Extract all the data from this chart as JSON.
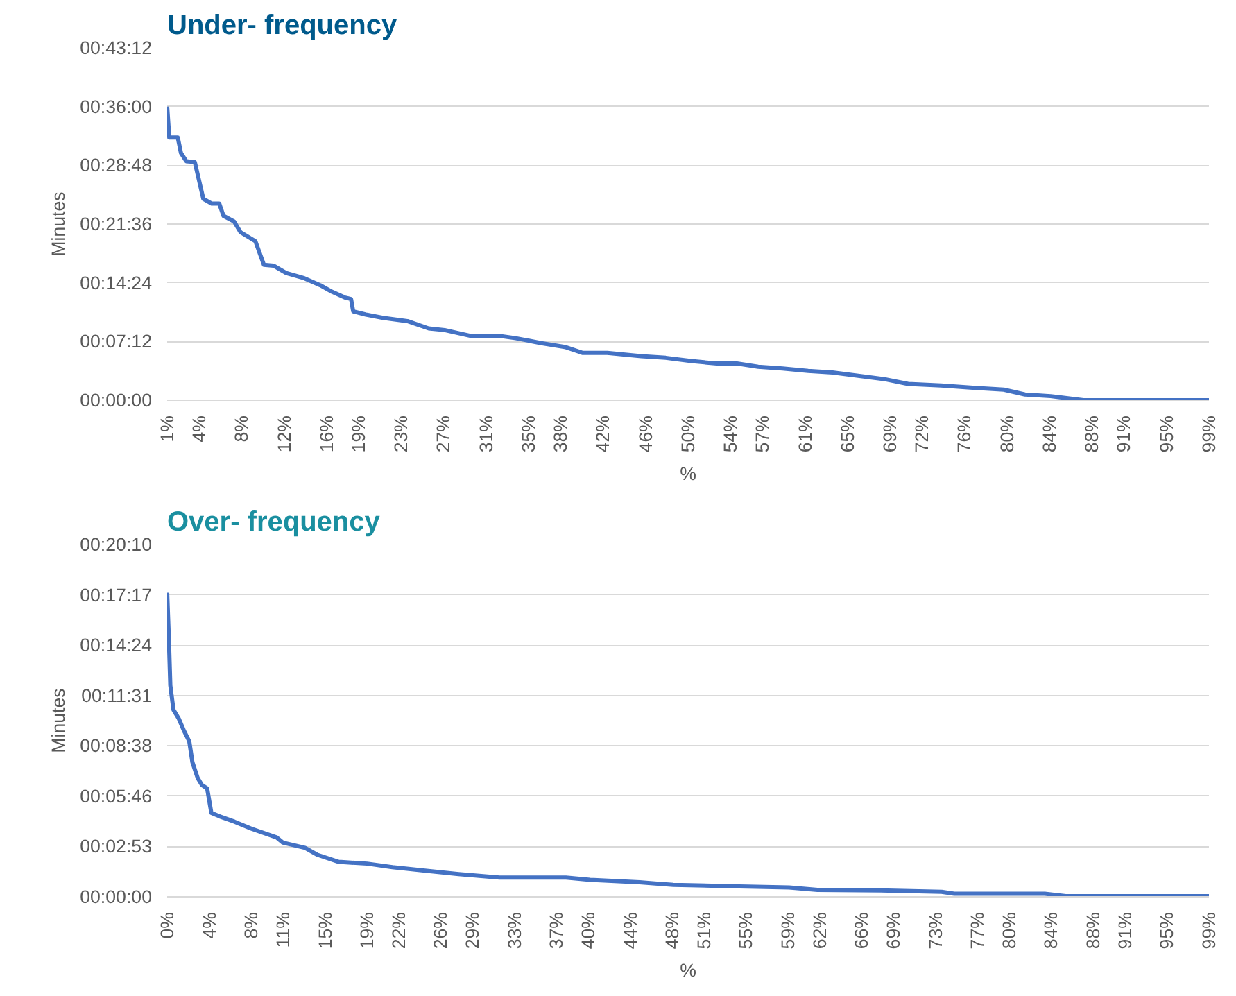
{
  "chart_data": [
    {
      "type": "line",
      "title": "Under-\nfrequency",
      "xlabel": "%",
      "ylabel": "Minutes",
      "grid": "y",
      "line_style": "solid",
      "xlim": [
        1,
        99
      ],
      "xticks": [
        {
          "value": 1,
          "label": "1%"
        },
        {
          "value": 4,
          "label": "4%"
        },
        {
          "value": 8,
          "label": "8%"
        },
        {
          "value": 12,
          "label": "12%"
        },
        {
          "value": 16,
          "label": "16%"
        },
        {
          "value": 19,
          "label": "19%"
        },
        {
          "value": 23,
          "label": "23%"
        },
        {
          "value": 27,
          "label": "27%"
        },
        {
          "value": 31,
          "label": "31%"
        },
        {
          "value": 35,
          "label": "35%"
        },
        {
          "value": 38,
          "label": "38%"
        },
        {
          "value": 42,
          "label": "42%"
        },
        {
          "value": 46,
          "label": "46%"
        },
        {
          "value": 50,
          "label": "50%"
        },
        {
          "value": 54,
          "label": "54%"
        },
        {
          "value": 57,
          "label": "57%"
        },
        {
          "value": 61,
          "label": "61%"
        },
        {
          "value": 65,
          "label": "65%"
        },
        {
          "value": 69,
          "label": "69%"
        },
        {
          "value": 72,
          "label": "72%"
        },
        {
          "value": 76,
          "label": "76%"
        },
        {
          "value": 80,
          "label": "80%"
        },
        {
          "value": 84,
          "label": "84%"
        },
        {
          "value": 88,
          "label": "88%"
        },
        {
          "value": 91,
          "label": "91%"
        },
        {
          "value": 95,
          "label": "95%"
        },
        {
          "value": 99,
          "label": "99%"
        }
      ],
      "ylim": [
        0,
        43.2
      ],
      "yticks": [
        {
          "value": 0,
          "label": "00:00:00"
        },
        {
          "value": 7.2,
          "label": "00:07:12"
        },
        {
          "value": 14.4,
          "label": "00:14:24"
        },
        {
          "value": 21.6,
          "label": "00:21:36"
        },
        {
          "value": 28.8,
          "label": "00:28:48"
        },
        {
          "value": 36,
          "label": "00:36:00"
        },
        {
          "value": 43.2,
          "label": "00:43:12"
        }
      ],
      "series": [
        {
          "color": "#4472c4",
          "x": [
            1,
            1.2,
            2,
            2.3,
            2.8,
            3.6,
            4.4,
            5.2,
            5.9,
            6.3,
            7.3,
            7.9,
            9.3,
            10.1,
            11,
            12.2,
            13.8,
            15.4,
            16.5,
            17.7,
            18.3,
            18.5,
            19.7,
            21.3,
            23.6,
            25.6,
            27.1,
            29.5,
            32.2,
            33.8,
            36.2,
            38.5,
            40.1,
            42.4,
            45.6,
            47.9,
            50.3,
            52.7,
            54.6,
            56.6,
            58.9,
            61.3,
            63.6,
            66,
            68.4,
            70.7,
            73.8,
            77,
            79.7,
            81.7,
            84.1,
            86,
            87.2,
            99
          ],
          "values": [
            36,
            32.2,
            32.2,
            30.3,
            29.3,
            29.2,
            24.7,
            24.1,
            24.1,
            22.6,
            21.9,
            20.6,
            19.5,
            16.6,
            16.5,
            15.6,
            15,
            14.1,
            13.3,
            12.6,
            12.4,
            10.9,
            10.5,
            10.1,
            9.7,
            8.8,
            8.6,
            7.9,
            7.9,
            7.6,
            7,
            6.5,
            5.8,
            5.8,
            5.4,
            5.2,
            4.8,
            4.5,
            4.5,
            4.1,
            3.9,
            3.6,
            3.4,
            3,
            2.6,
            2,
            1.8,
            1.5,
            1.3,
            0.7,
            0.5,
            0.2,
            0,
            0
          ]
        }
      ]
    },
    {
      "type": "line",
      "title": "Over-\nfrequency",
      "xlabel": "%",
      "ylabel": "Minutes",
      "grid": "y",
      "line_style": "solid",
      "xlim": [
        0,
        99
      ],
      "xticks": [
        {
          "value": 0,
          "label": "0%"
        },
        {
          "value": 4,
          "label": "4%"
        },
        {
          "value": 8,
          "label": "8%"
        },
        {
          "value": 11,
          "label": "11%"
        },
        {
          "value": 15,
          "label": "15%"
        },
        {
          "value": 19,
          "label": "19%"
        },
        {
          "value": 22,
          "label": "22%"
        },
        {
          "value": 26,
          "label": "26%"
        },
        {
          "value": 29,
          "label": "29%"
        },
        {
          "value": 33,
          "label": "33%"
        },
        {
          "value": 37,
          "label": "37%"
        },
        {
          "value": 40,
          "label": "40%"
        },
        {
          "value": 44,
          "label": "44%"
        },
        {
          "value": 48,
          "label": "48%"
        },
        {
          "value": 51,
          "label": "51%"
        },
        {
          "value": 55,
          "label": "55%"
        },
        {
          "value": 59,
          "label": "59%"
        },
        {
          "value": 62,
          "label": "62%"
        },
        {
          "value": 66,
          "label": "66%"
        },
        {
          "value": 69,
          "label": "69%"
        },
        {
          "value": 73,
          "label": "73%"
        },
        {
          "value": 77,
          "label": "77%"
        },
        {
          "value": 80,
          "label": "80%"
        },
        {
          "value": 84,
          "label": "84%"
        },
        {
          "value": 88,
          "label": "88%"
        },
        {
          "value": 91,
          "label": "91%"
        },
        {
          "value": 95,
          "label": "95%"
        },
        {
          "value": 99,
          "label": "99%"
        }
      ],
      "ylim": [
        0,
        20.16
      ],
      "yticks": [
        {
          "value": 0,
          "label": "00:00:00"
        },
        {
          "value": 2.88,
          "label": "00:02:53"
        },
        {
          "value": 5.76,
          "label": "00:05:46"
        },
        {
          "value": 8.64,
          "label": "00:08:38"
        },
        {
          "value": 11.52,
          "label": "00:11:31"
        },
        {
          "value": 14.4,
          "label": "00:14:24"
        },
        {
          "value": 17.28,
          "label": "00:17:17"
        },
        {
          "value": 20.16,
          "label": "00:20:10"
        }
      ],
      "series": [
        {
          "color": "#4472c4",
          "x": [
            0,
            0.16,
            0.3,
            0.6,
            1.1,
            1.6,
            2.1,
            2.4,
            2.9,
            3.3,
            3.8,
            4.2,
            5,
            6.4,
            8,
            10.4,
            11,
            13.1,
            14.3,
            16.3,
            19,
            21.4,
            24.5,
            27.7,
            31.6,
            37.9,
            40.2,
            44.9,
            48.1,
            53.6,
            59.1,
            61.8,
            68.5,
            73.6,
            74.8,
            83.4,
            85.4,
            99
          ],
          "values": [
            17.4,
            14.8,
            12.1,
            10.7,
            10.2,
            9.5,
            8.9,
            7.7,
            6.8,
            6.4,
            6.2,
            4.8,
            4.6,
            4.3,
            3.9,
            3.4,
            3.1,
            2.8,
            2.4,
            2,
            1.9,
            1.7,
            1.5,
            1.3,
            1.1,
            1.1,
            0.97,
            0.83,
            0.68,
            0.61,
            0.54,
            0.4,
            0.36,
            0.29,
            0.18,
            0.18,
            0.04,
            0.04
          ]
        }
      ]
    }
  ]
}
